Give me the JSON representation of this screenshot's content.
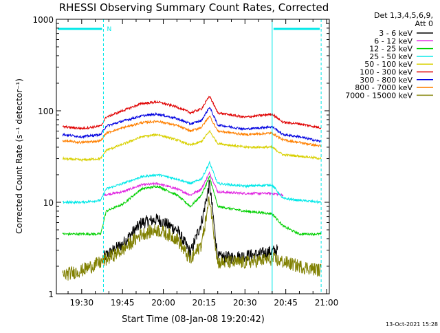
{
  "chart_data": {
    "type": "line",
    "title": "RHESSI Observing Summary Count Rates, Corrected",
    "xlabel": "Start Time (08-Jan-08 19:20:42)",
    "ylabel": "Corrected Count Rate (s⁻¹ detector⁻¹)",
    "y_scale": "log",
    "ylim": [
      1,
      1000
    ],
    "y_ticks": [
      1,
      10,
      100,
      1000
    ],
    "y_tick_labels": [
      "1",
      "10",
      "100",
      "1000"
    ],
    "x_ticks": [
      "19:30",
      "19:45",
      "20:00",
      "20:15",
      "20:30",
      "20:45",
      "21:00"
    ],
    "xlim": [
      "19:20:42",
      "21:01:00"
    ],
    "legend_position": "top-right",
    "legend_header": [
      "Det 1,3,4,5,6,9,",
      "Att 0"
    ],
    "timestamp": "13-Oct-2021 15:28",
    "night_intervals": [
      [
        "19:20:42",
        "19:38:00"
      ],
      [
        "20:40:00",
        "20:58:00"
      ]
    ],
    "saa_marker": "N",
    "saa_segments": [
      [
        "19:20:42",
        "19:38:00"
      ],
      [
        "20:40:00",
        "20:58:00"
      ]
    ],
    "series": [
      {
        "name": "3 - 6 keV",
        "color": "#000000",
        "x": [
          "19:38",
          "19:45",
          "19:52",
          "19:58",
          "20:05",
          "20:10",
          "20:14",
          "20:17",
          "20:20",
          "20:25",
          "20:35",
          "20:42"
        ],
        "y": [
          2.5,
          3.5,
          6.0,
          6.5,
          5.0,
          2.8,
          6.0,
          16.0,
          2.5,
          2.5,
          2.7,
          3.0
        ]
      },
      {
        "name": "6 - 12 keV",
        "color": "#e020e0",
        "x": [
          "19:38",
          "19:45",
          "19:52",
          "19:58",
          "20:05",
          "20:10",
          "20:14",
          "20:17",
          "20:20",
          "20:30",
          "20:40",
          "20:44"
        ],
        "y": [
          12.0,
          13.0,
          15.5,
          16.0,
          14.0,
          12.0,
          14.0,
          21.0,
          13.0,
          12.5,
          12.5,
          12.0
        ]
      },
      {
        "name": "12 - 25 keV",
        "color": "#00d000",
        "x": [
          "19:23",
          "19:30",
          "19:37",
          "19:39",
          "19:45",
          "19:52",
          "19:58",
          "20:05",
          "20:10",
          "20:14",
          "20:17",
          "20:20",
          "20:30",
          "20:40",
          "20:44",
          "20:50",
          "20:58"
        ],
        "y": [
          4.5,
          4.5,
          4.5,
          8.0,
          9.5,
          14.0,
          15.0,
          12.0,
          9.0,
          12.0,
          19.0,
          9.0,
          8.0,
          7.5,
          5.5,
          4.5,
          4.5
        ]
      },
      {
        "name": "25 - 50 keV",
        "color": "#00e8e8",
        "x": [
          "19:23",
          "19:30",
          "19:37",
          "19:39",
          "19:45",
          "19:52",
          "19:58",
          "20:05",
          "20:10",
          "20:14",
          "20:17",
          "20:20",
          "20:30",
          "20:40",
          "20:44",
          "20:50",
          "20:58"
        ],
        "y": [
          10.0,
          10.0,
          10.5,
          14.0,
          16.0,
          19.0,
          20.0,
          18.0,
          16.0,
          18.0,
          27.0,
          16.0,
          15.0,
          15.5,
          11.0,
          10.5,
          10.0
        ]
      },
      {
        "name": "50 - 100 keV",
        "color": "#d8d000",
        "x": [
          "19:23",
          "19:30",
          "19:37",
          "19:39",
          "19:45",
          "19:52",
          "19:58",
          "20:05",
          "20:10",
          "20:14",
          "20:17",
          "20:20",
          "20:30",
          "20:40",
          "20:44",
          "20:50",
          "20:58"
        ],
        "y": [
          30.0,
          29.0,
          30.0,
          37.0,
          43.0,
          52.0,
          55.0,
          48.0,
          42.0,
          46.0,
          60.0,
          44.0,
          40.0,
          40.0,
          33.0,
          32.0,
          30.0
        ]
      },
      {
        "name": "100 - 300 keV",
        "color": "#e00000",
        "x": [
          "19:23",
          "19:30",
          "19:37",
          "19:39",
          "19:45",
          "19:52",
          "19:58",
          "20:05",
          "20:10",
          "20:14",
          "20:17",
          "20:20",
          "20:30",
          "20:40",
          "20:44",
          "20:50",
          "20:58"
        ],
        "y": [
          67.0,
          64.0,
          68.0,
          85.0,
          100.0,
          120.0,
          125.0,
          110.0,
          95.0,
          105.0,
          145.0,
          95.0,
          85.0,
          92.0,
          75.0,
          72.0,
          65.0
        ]
      },
      {
        "name": "300 - 800 keV",
        "color": "#0000e0",
        "x": [
          "19:23",
          "19:30",
          "19:37",
          "19:39",
          "19:45",
          "19:52",
          "19:58",
          "20:05",
          "20:10",
          "20:14",
          "20:17",
          "20:20",
          "20:30",
          "20:40",
          "20:44",
          "20:50",
          "20:58"
        ],
        "y": [
          55.0,
          52.0,
          55.0,
          68.0,
          77.0,
          88.0,
          92.0,
          82.0,
          72.0,
          78.0,
          110.0,
          70.0,
          63.0,
          67.0,
          55.0,
          52.0,
          46.0
        ]
      },
      {
        "name": "800 - 7000 keV",
        "color": "#ff8000",
        "x": [
          "19:23",
          "19:30",
          "19:37",
          "19:39",
          "19:45",
          "19:52",
          "19:58",
          "20:05",
          "20:10",
          "20:14",
          "20:17",
          "20:20",
          "20:30",
          "20:40",
          "20:44",
          "20:50",
          "20:58"
        ],
        "y": [
          47.0,
          45.0,
          47.0,
          57.0,
          65.0,
          74.0,
          77.0,
          69.0,
          60.0,
          66.0,
          88.0,
          60.0,
          55.0,
          57.0,
          48.0,
          45.0,
          41.0
        ]
      },
      {
        "name": "7000 - 15000 keV",
        "color": "#808000",
        "x": [
          "19:23",
          "19:30",
          "19:37",
          "19:45",
          "19:52",
          "19:58",
          "20:05",
          "20:10",
          "20:14",
          "20:17",
          "20:20",
          "20:30",
          "20:40",
          "20:50",
          "20:58"
        ],
        "y": [
          1.6,
          1.8,
          2.2,
          3.0,
          4.5,
          5.0,
          4.0,
          2.3,
          3.5,
          11.0,
          2.2,
          2.2,
          2.4,
          2.0,
          1.8
        ]
      }
    ]
  }
}
